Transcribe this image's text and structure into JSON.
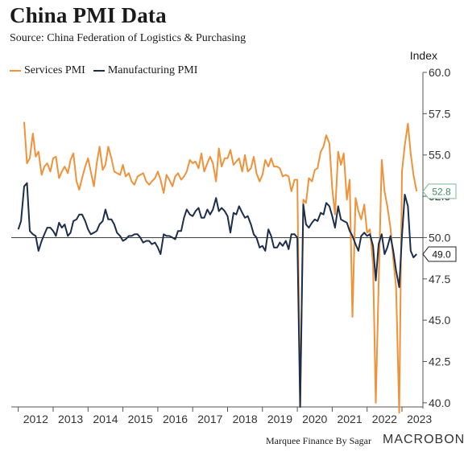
{
  "header": {
    "title": "China PMI Data",
    "subtitle": "Source: China Federation of Logistics & Purchasing"
  },
  "footer": {
    "credit": "Marquee Finance By Sagar",
    "logo": "MACROBOND"
  },
  "colors": {
    "services": "#f0923a",
    "manufacturing": "#1c2e4a",
    "axis": "#555555",
    "callout_services_border": "#7cb89a"
  },
  "chart_data": {
    "type": "line",
    "ylabel": "Index",
    "ylim": [
      39.75,
      60.0
    ],
    "yticks": [
      40.0,
      42.5,
      45.0,
      47.5,
      50.0,
      52.5,
      55.0,
      57.5,
      60.0
    ],
    "xlim": [
      2011.8,
      2023.6
    ],
    "xtick_labels": [
      "2012",
      "2013",
      "2014",
      "2015",
      "2016",
      "2017",
      "2018",
      "2019",
      "2020",
      "2021",
      "2022",
      "2023"
    ],
    "xticks": [
      2012.5,
      2013.5,
      2014.5,
      2015.5,
      2016.5,
      2017.5,
      2018.5,
      2019.5,
      2020.5,
      2021.5,
      2022.5,
      2023.5
    ],
    "reference_line": 50.0,
    "legend_position": "top-left",
    "series": [
      {
        "name": "Services PMI",
        "key": "services",
        "last_label": "52.8",
        "points": [
          [
            2012.17,
            57.0
          ],
          [
            2012.25,
            54.5
          ],
          [
            2012.33,
            54.8
          ],
          [
            2012.42,
            56.3
          ],
          [
            2012.5,
            54.9
          ],
          [
            2012.58,
            55.2
          ],
          [
            2012.67,
            53.8
          ],
          [
            2012.75,
            54.3
          ],
          [
            2012.83,
            54.5
          ],
          [
            2012.92,
            54.0
          ],
          [
            2013.0,
            54.8
          ],
          [
            2013.08,
            54.9
          ],
          [
            2013.17,
            53.6
          ],
          [
            2013.25,
            54.0
          ],
          [
            2013.33,
            54.3
          ],
          [
            2013.42,
            53.9
          ],
          [
            2013.5,
            54.7
          ],
          [
            2013.58,
            55.1
          ],
          [
            2013.67,
            53.4
          ],
          [
            2013.75,
            52.9
          ],
          [
            2013.83,
            53.6
          ],
          [
            2013.92,
            54.3
          ],
          [
            2014.0,
            54.8
          ],
          [
            2014.08,
            54.0
          ],
          [
            2014.17,
            53.1
          ],
          [
            2014.25,
            54.5
          ],
          [
            2014.33,
            55.5
          ],
          [
            2014.42,
            54.1
          ],
          [
            2014.5,
            54.4
          ],
          [
            2014.58,
            55.5
          ],
          [
            2014.67,
            54.8
          ],
          [
            2014.75,
            54.0
          ],
          [
            2014.83,
            53.9
          ],
          [
            2014.92,
            53.8
          ],
          [
            2015.0,
            54.4
          ],
          [
            2015.08,
            53.7
          ],
          [
            2015.17,
            53.9
          ],
          [
            2015.25,
            53.4
          ],
          [
            2015.33,
            53.2
          ],
          [
            2015.42,
            53.7
          ],
          [
            2015.5,
            53.8
          ],
          [
            2015.58,
            53.9
          ],
          [
            2015.67,
            53.4
          ],
          [
            2015.75,
            53.2
          ],
          [
            2015.83,
            53.4
          ],
          [
            2015.92,
            53.6
          ],
          [
            2016.0,
            54.0
          ],
          [
            2016.08,
            53.5
          ],
          [
            2016.17,
            52.7
          ],
          [
            2016.25,
            53.8
          ],
          [
            2016.33,
            53.5
          ],
          [
            2016.42,
            53.1
          ],
          [
            2016.5,
            53.7
          ],
          [
            2016.58,
            53.9
          ],
          [
            2016.67,
            53.5
          ],
          [
            2016.75,
            53.7
          ],
          [
            2016.83,
            54.0
          ],
          [
            2016.92,
            54.7
          ],
          [
            2017.0,
            54.5
          ],
          [
            2017.08,
            54.6
          ],
          [
            2017.17,
            54.2
          ],
          [
            2017.25,
            55.1
          ],
          [
            2017.33,
            54.0
          ],
          [
            2017.42,
            54.5
          ],
          [
            2017.5,
            54.9
          ],
          [
            2017.58,
            54.5
          ],
          [
            2017.67,
            53.4
          ],
          [
            2017.75,
            55.4
          ],
          [
            2017.83,
            54.3
          ],
          [
            2017.92,
            54.8
          ],
          [
            2018.0,
            54.8
          ],
          [
            2018.08,
            55.3
          ],
          [
            2018.17,
            54.4
          ],
          [
            2018.25,
            54.6
          ],
          [
            2018.33,
            54.8
          ],
          [
            2018.42,
            54.0
          ],
          [
            2018.5,
            55.0
          ],
          [
            2018.58,
            54.0
          ],
          [
            2018.67,
            54.2
          ],
          [
            2018.75,
            54.9
          ],
          [
            2018.83,
            53.9
          ],
          [
            2018.92,
            53.4
          ],
          [
            2019.0,
            53.8
          ],
          [
            2019.08,
            54.7
          ],
          [
            2019.17,
            54.3
          ],
          [
            2019.25,
            54.8
          ],
          [
            2019.33,
            54.3
          ],
          [
            2019.42,
            54.3
          ],
          [
            2019.5,
            54.2
          ],
          [
            2019.58,
            53.7
          ],
          [
            2019.67,
            53.8
          ],
          [
            2019.75,
            53.7
          ],
          [
            2019.83,
            52.8
          ],
          [
            2019.92,
            53.5
          ],
          [
            2020.0,
            53.5
          ],
          [
            2020.08,
            39.75
          ],
          [
            2020.17,
            52.3
          ],
          [
            2020.25,
            52.1
          ],
          [
            2020.33,
            53.6
          ],
          [
            2020.42,
            53.4
          ],
          [
            2020.5,
            54.1
          ],
          [
            2020.58,
            54.2
          ],
          [
            2020.67,
            55.2
          ],
          [
            2020.75,
            55.5
          ],
          [
            2020.83,
            56.2
          ],
          [
            2020.92,
            55.7
          ],
          [
            2021.0,
            53.0
          ],
          [
            2021.08,
            51.4
          ],
          [
            2021.17,
            55.2
          ],
          [
            2021.25,
            54.4
          ],
          [
            2021.33,
            55.1
          ],
          [
            2021.42,
            52.3
          ],
          [
            2021.5,
            53.5
          ],
          [
            2021.58,
            45.2
          ],
          [
            2021.67,
            52.4
          ],
          [
            2021.75,
            51.6
          ],
          [
            2021.83,
            51.1
          ],
          [
            2021.92,
            52.0
          ],
          [
            2022.0,
            50.3
          ],
          [
            2022.08,
            50.5
          ],
          [
            2022.17,
            48.4
          ],
          [
            2022.25,
            40.0
          ],
          [
            2022.33,
            47.1
          ],
          [
            2022.42,
            54.7
          ],
          [
            2022.5,
            52.8
          ],
          [
            2022.58,
            51.9
          ],
          [
            2022.67,
            50.6
          ],
          [
            2022.75,
            48.7
          ],
          [
            2022.83,
            47.0
          ],
          [
            2022.92,
            39.4
          ],
          [
            2023.0,
            54.0
          ],
          [
            2023.08,
            55.6
          ],
          [
            2023.17,
            56.9
          ],
          [
            2023.25,
            55.1
          ],
          [
            2023.33,
            53.8
          ],
          [
            2023.42,
            52.8
          ]
        ]
      },
      {
        "name": "Manufacturing PMI",
        "key": "manufacturing",
        "last_label": "49.0",
        "points": [
          [
            2012.0,
            50.5
          ],
          [
            2012.08,
            51.0
          ],
          [
            2012.17,
            53.1
          ],
          [
            2012.25,
            53.3
          ],
          [
            2012.33,
            50.4
          ],
          [
            2012.42,
            50.2
          ],
          [
            2012.5,
            50.1
          ],
          [
            2012.58,
            49.2
          ],
          [
            2012.67,
            49.8
          ],
          [
            2012.75,
            50.2
          ],
          [
            2012.83,
            50.6
          ],
          [
            2012.92,
            50.6
          ],
          [
            2013.0,
            50.4
          ],
          [
            2013.08,
            50.1
          ],
          [
            2013.17,
            50.9
          ],
          [
            2013.25,
            50.6
          ],
          [
            2013.33,
            50.8
          ],
          [
            2013.42,
            50.1
          ],
          [
            2013.5,
            50.3
          ],
          [
            2013.58,
            51.0
          ],
          [
            2013.67,
            51.1
          ],
          [
            2013.75,
            51.4
          ],
          [
            2013.83,
            51.4
          ],
          [
            2013.92,
            51.0
          ],
          [
            2014.0,
            50.5
          ],
          [
            2014.08,
            50.2
          ],
          [
            2014.17,
            50.3
          ],
          [
            2014.25,
            50.4
          ],
          [
            2014.33,
            50.8
          ],
          [
            2014.42,
            51.0
          ],
          [
            2014.5,
            51.7
          ],
          [
            2014.58,
            51.1
          ],
          [
            2014.67,
            51.1
          ],
          [
            2014.75,
            50.8
          ],
          [
            2014.83,
            50.3
          ],
          [
            2014.92,
            50.1
          ],
          [
            2015.0,
            49.8
          ],
          [
            2015.08,
            49.9
          ],
          [
            2015.17,
            50.1
          ],
          [
            2015.25,
            50.1
          ],
          [
            2015.33,
            50.2
          ],
          [
            2015.42,
            50.2
          ],
          [
            2015.5,
            50.0
          ],
          [
            2015.58,
            49.7
          ],
          [
            2015.67,
            49.8
          ],
          [
            2015.75,
            49.8
          ],
          [
            2015.83,
            49.6
          ],
          [
            2015.92,
            49.7
          ],
          [
            2016.0,
            49.4
          ],
          [
            2016.08,
            49.0
          ],
          [
            2016.17,
            50.2
          ],
          [
            2016.25,
            50.1
          ],
          [
            2016.33,
            50.1
          ],
          [
            2016.42,
            50.0
          ],
          [
            2016.5,
            49.9
          ],
          [
            2016.58,
            50.4
          ],
          [
            2016.67,
            50.4
          ],
          [
            2016.75,
            51.2
          ],
          [
            2016.83,
            51.7
          ],
          [
            2016.92,
            51.4
          ],
          [
            2017.0,
            51.3
          ],
          [
            2017.08,
            51.6
          ],
          [
            2017.17,
            51.8
          ],
          [
            2017.25,
            51.2
          ],
          [
            2017.33,
            51.2
          ],
          [
            2017.42,
            51.7
          ],
          [
            2017.5,
            51.4
          ],
          [
            2017.58,
            51.7
          ],
          [
            2017.67,
            52.4
          ],
          [
            2017.75,
            51.6
          ],
          [
            2017.83,
            51.8
          ],
          [
            2017.92,
            51.6
          ],
          [
            2018.0,
            51.3
          ],
          [
            2018.08,
            50.3
          ],
          [
            2018.17,
            51.5
          ],
          [
            2018.25,
            51.4
          ],
          [
            2018.33,
            51.9
          ],
          [
            2018.42,
            51.5
          ],
          [
            2018.5,
            51.2
          ],
          [
            2018.58,
            51.3
          ],
          [
            2018.67,
            50.8
          ],
          [
            2018.75,
            50.2
          ],
          [
            2018.83,
            50.0
          ],
          [
            2018.92,
            49.4
          ],
          [
            2019.0,
            49.5
          ],
          [
            2019.08,
            49.2
          ],
          [
            2019.17,
            50.5
          ],
          [
            2019.25,
            50.1
          ],
          [
            2019.33,
            49.4
          ],
          [
            2019.42,
            49.4
          ],
          [
            2019.5,
            49.7
          ],
          [
            2019.58,
            49.5
          ],
          [
            2019.67,
            49.8
          ],
          [
            2019.75,
            49.3
          ],
          [
            2019.83,
            50.2
          ],
          [
            2019.92,
            50.2
          ],
          [
            2020.0,
            50.0
          ],
          [
            2020.08,
            39.75
          ],
          [
            2020.17,
            52.0
          ],
          [
            2020.25,
            50.8
          ],
          [
            2020.33,
            50.6
          ],
          [
            2020.42,
            50.9
          ],
          [
            2020.5,
            51.1
          ],
          [
            2020.58,
            51.0
          ],
          [
            2020.67,
            51.5
          ],
          [
            2020.75,
            51.4
          ],
          [
            2020.83,
            52.1
          ],
          [
            2020.92,
            51.9
          ],
          [
            2021.0,
            51.3
          ],
          [
            2021.08,
            50.6
          ],
          [
            2021.17,
            51.9
          ],
          [
            2021.25,
            51.1
          ],
          [
            2021.33,
            51.0
          ],
          [
            2021.42,
            50.9
          ],
          [
            2021.5,
            50.4
          ],
          [
            2021.58,
            50.1
          ],
          [
            2021.67,
            49.6
          ],
          [
            2021.75,
            49.2
          ],
          [
            2021.83,
            50.1
          ],
          [
            2021.92,
            50.3
          ],
          [
            2022.0,
            50.1
          ],
          [
            2022.08,
            50.2
          ],
          [
            2022.17,
            49.5
          ],
          [
            2022.25,
            47.4
          ],
          [
            2022.33,
            49.6
          ],
          [
            2022.42,
            50.2
          ],
          [
            2022.5,
            49.0
          ],
          [
            2022.58,
            49.4
          ],
          [
            2022.67,
            50.1
          ],
          [
            2022.75,
            49.2
          ],
          [
            2022.83,
            48.0
          ],
          [
            2022.92,
            47.0
          ],
          [
            2023.0,
            50.1
          ],
          [
            2023.08,
            52.6
          ],
          [
            2023.17,
            51.9
          ],
          [
            2023.25,
            49.2
          ],
          [
            2023.33,
            48.8
          ],
          [
            2023.42,
            49.0
          ]
        ]
      }
    ]
  }
}
